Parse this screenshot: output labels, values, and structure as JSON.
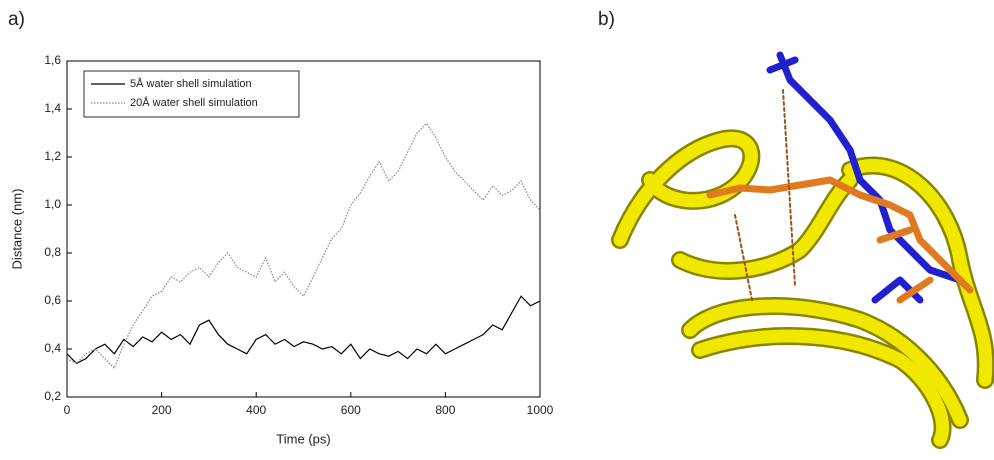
{
  "panels": {
    "a": "a)",
    "b": "b)"
  },
  "chart_data": {
    "type": "line",
    "xlabel": "Time (ps)",
    "ylabel": "Distance (nm)",
    "x": [
      0,
      20,
      40,
      60,
      80,
      100,
      120,
      140,
      160,
      180,
      200,
      220,
      240,
      260,
      280,
      300,
      320,
      340,
      360,
      380,
      400,
      420,
      440,
      460,
      480,
      500,
      520,
      540,
      560,
      580,
      600,
      620,
      640,
      660,
      680,
      700,
      720,
      740,
      760,
      780,
      800,
      820,
      840,
      860,
      880,
      900,
      920,
      940,
      960,
      980,
      1000
    ],
    "series": [
      {
        "name": "5Å water shell simulation",
        "color": "#000000",
        "linestyle": "solid",
        "values": [
          0.38,
          0.34,
          0.36,
          0.4,
          0.42,
          0.38,
          0.44,
          0.41,
          0.45,
          0.43,
          0.47,
          0.44,
          0.46,
          0.42,
          0.5,
          0.52,
          0.46,
          0.42,
          0.4,
          0.38,
          0.44,
          0.46,
          0.42,
          0.44,
          0.41,
          0.43,
          0.42,
          0.4,
          0.41,
          0.38,
          0.42,
          0.36,
          0.4,
          0.38,
          0.37,
          0.39,
          0.36,
          0.4,
          0.38,
          0.42,
          0.38,
          0.4,
          0.42,
          0.44,
          0.46,
          0.5,
          0.48,
          0.55,
          0.62,
          0.58,
          0.6
        ]
      },
      {
        "name": "20Å water shell simulation",
        "color": "#888888",
        "linestyle": "dotted",
        "values": [
          0.36,
          0.34,
          0.38,
          0.4,
          0.36,
          0.32,
          0.42,
          0.5,
          0.56,
          0.62,
          0.64,
          0.7,
          0.68,
          0.72,
          0.74,
          0.7,
          0.76,
          0.8,
          0.74,
          0.72,
          0.7,
          0.78,
          0.68,
          0.72,
          0.66,
          0.62,
          0.7,
          0.78,
          0.86,
          0.9,
          1.0,
          1.05,
          1.12,
          1.18,
          1.1,
          1.14,
          1.22,
          1.3,
          1.34,
          1.28,
          1.2,
          1.14,
          1.1,
          1.06,
          1.02,
          1.08,
          1.04,
          1.06,
          1.1,
          1.02,
          0.98
        ]
      }
    ],
    "xlim": [
      0,
      1000
    ],
    "xticks": [
      0,
      200,
      400,
      600,
      800,
      1000
    ],
    "ylim": [
      0.2,
      1.6
    ],
    "yticks": [
      {
        "value": 0.2,
        "label": "0,2"
      },
      {
        "value": 0.4,
        "label": "0,4"
      },
      {
        "value": 0.6,
        "label": "0,6"
      },
      {
        "value": 0.8,
        "label": "0,8"
      },
      {
        "value": 1.0,
        "label": "1,0"
      },
      {
        "value": 1.2,
        "label": "1,2"
      },
      {
        "value": 1.4,
        "label": "1,4"
      },
      {
        "value": 1.6,
        "label": "1,6"
      }
    ],
    "legend": "upper left"
  }
}
